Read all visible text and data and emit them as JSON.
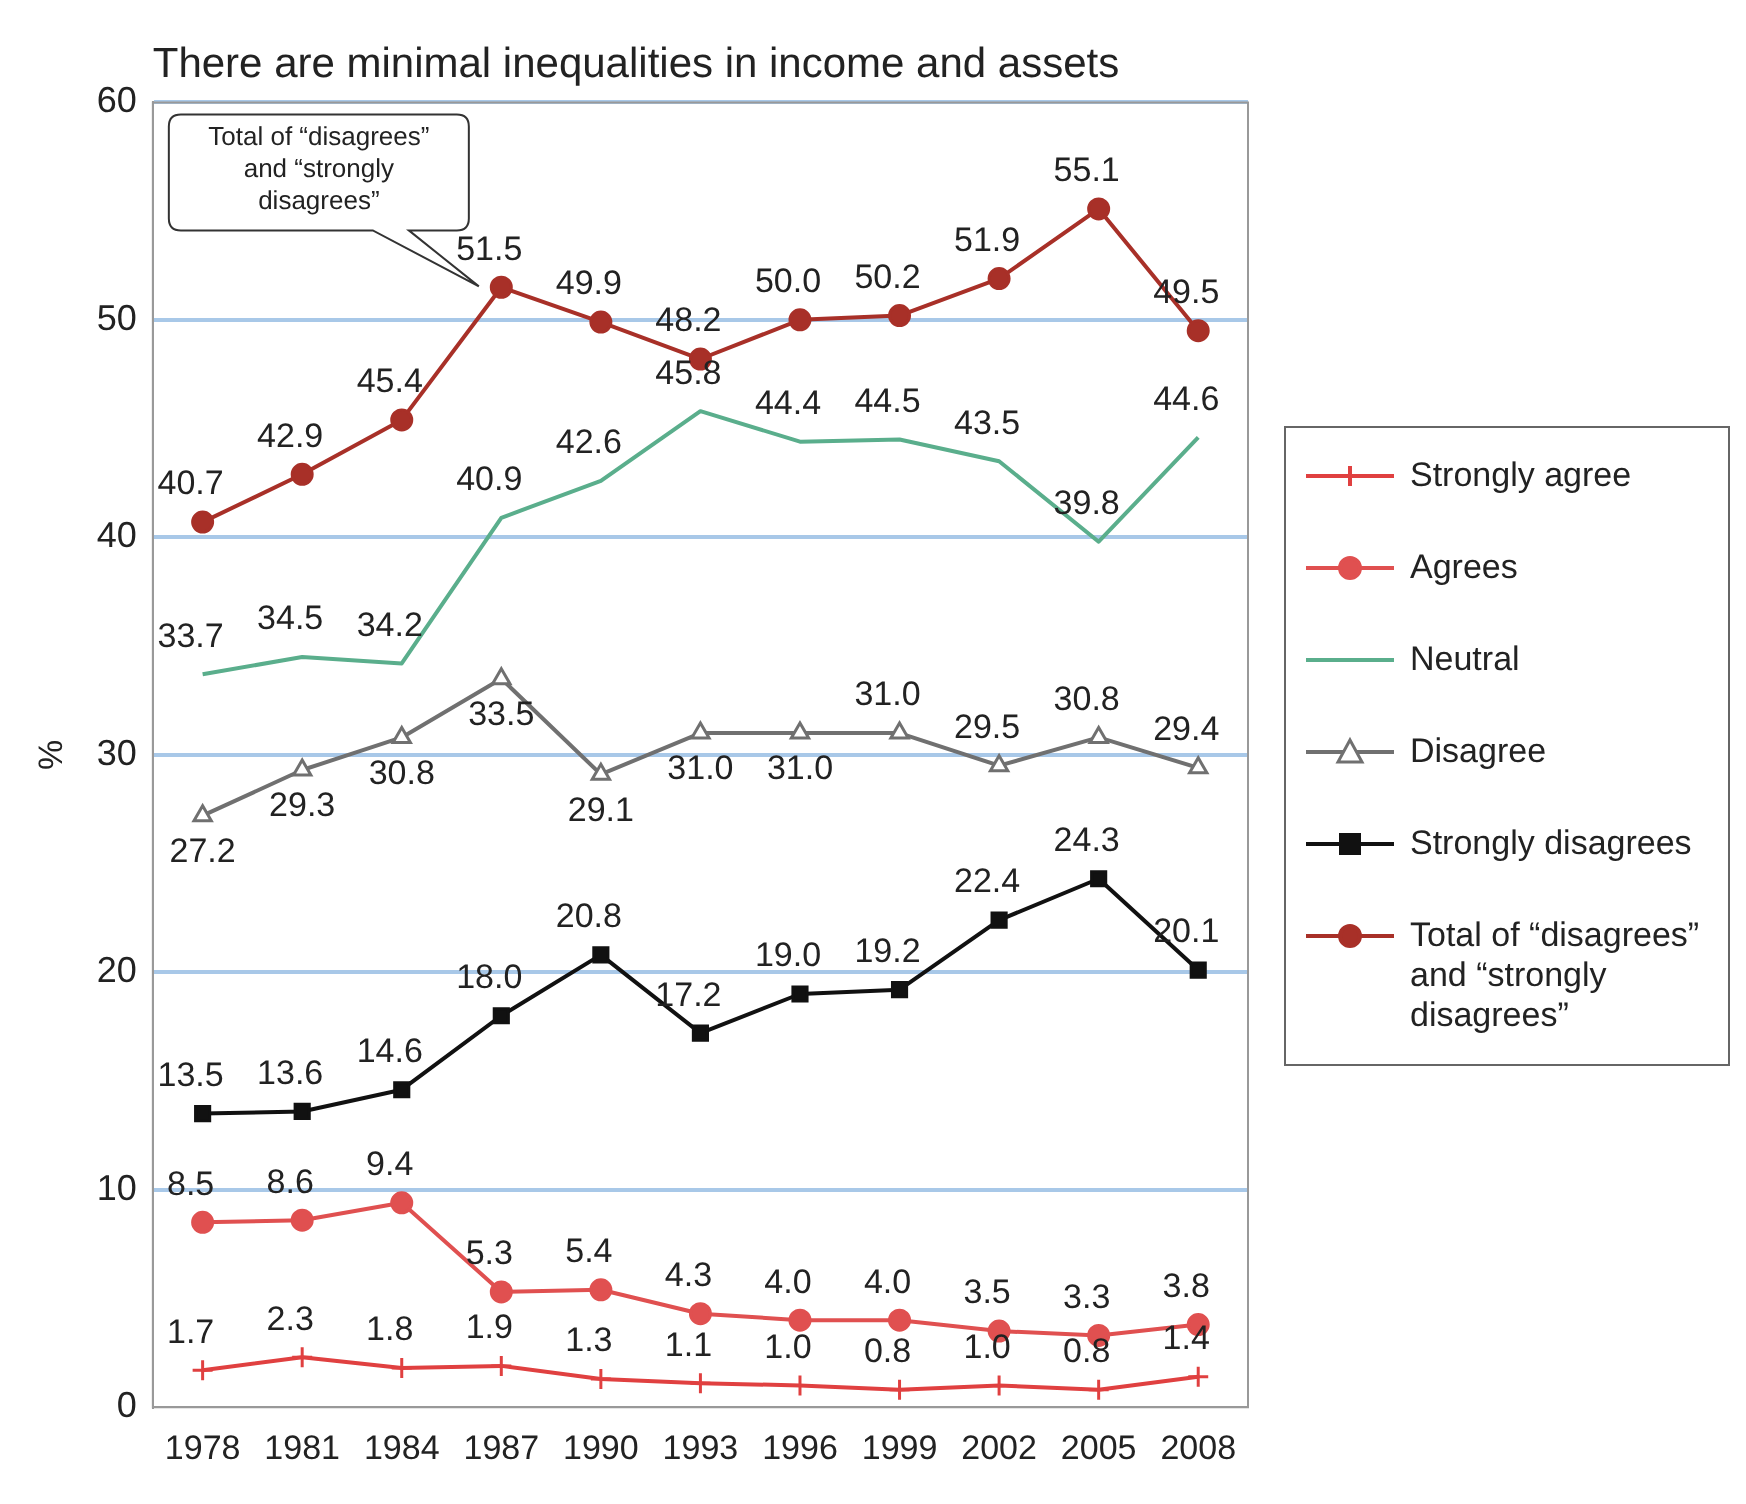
{
  "chart_data": {
    "type": "line",
    "title": "There are minimal inequalities in income and assets",
    "ylabel": "%",
    "categories": [
      "1978",
      "1981",
      "1984",
      "1987",
      "1990",
      "1993",
      "1996",
      "1999",
      "2002",
      "2005",
      "2008"
    ],
    "series": [
      {
        "name": "Strongly agree",
        "color": "#e04040",
        "marker": "cross",
        "values": [
          1.7,
          2.3,
          1.8,
          1.9,
          1.3,
          1.1,
          1.0,
          0.8,
          1.0,
          0.8,
          1.4
        ],
        "value_labels": [
          "1.7",
          "2.3",
          "1.8",
          "1.9",
          "1.3",
          "1.1",
          "1.0",
          "0.8",
          "1.0",
          "0.8",
          "1.4"
        ]
      },
      {
        "name": "Agrees",
        "color": "#e05050",
        "marker": "circle",
        "values": [
          8.5,
          8.6,
          9.4,
          5.3,
          5.4,
          4.3,
          4.0,
          4.0,
          3.5,
          3.3,
          3.8
        ],
        "value_labels": [
          "8.5",
          "8.6",
          "9.4",
          "5.3",
          "5.4",
          "4.3",
          "4.0",
          "4.0",
          "3.5",
          "3.3",
          "3.8"
        ]
      },
      {
        "name": "Neutral",
        "color": "#5aae8c",
        "marker": "none",
        "values": [
          33.7,
          34.5,
          34.2,
          40.9,
          42.6,
          45.8,
          44.4,
          44.5,
          43.5,
          39.8,
          44.6
        ],
        "value_labels": [
          "33.7",
          "34.5",
          "34.2",
          "40.9",
          "42.6",
          "45.8",
          "44.4",
          "44.5",
          "43.5",
          "39.8",
          "44.6"
        ]
      },
      {
        "name": "Disagree",
        "color": "#707070",
        "marker": "triangle",
        "values": [
          27.2,
          29.3,
          30.8,
          33.5,
          29.1,
          31.0,
          31.0,
          31.0,
          29.5,
          30.8,
          29.4
        ],
        "value_labels": [
          "27.2",
          "29.3",
          "30.8",
          "33.5",
          "29.1",
          "31.0",
          "31.0",
          "31.0",
          "29.5",
          "30.8",
          "29.4"
        ]
      },
      {
        "name": "Strongly disagrees",
        "color": "#111111",
        "marker": "square",
        "values": [
          13.5,
          13.6,
          14.6,
          18.0,
          20.8,
          17.2,
          19.0,
          19.2,
          22.4,
          24.3,
          20.1
        ],
        "value_labels": [
          "13.5",
          "13.6",
          "14.6",
          "18.0",
          "20.8",
          "17.2",
          "19.0",
          "19.2",
          "22.4",
          "24.3",
          "20.1"
        ]
      },
      {
        "name": "Total of “disagrees” and “strongly disagrees”",
        "color": "#a83028",
        "marker": "circle",
        "values": [
          40.7,
          42.9,
          45.4,
          51.5,
          49.9,
          48.2,
          50.0,
          50.2,
          51.9,
          55.1,
          49.5
        ],
        "value_labels": [
          "40.7",
          "42.9",
          "45.4",
          "51.5",
          "49.9",
          "48.2",
          "50.0",
          "50.2",
          "51.9",
          "55.1",
          "49.5"
        ]
      }
    ],
    "ylim": [
      0,
      60
    ],
    "yticks": [
      0,
      10,
      20,
      30,
      40,
      50,
      60
    ],
    "grid": "y",
    "legend": "right",
    "line_style": "solid",
    "annotations": [
      "Total of “disagrees” and “strongly disagrees”"
    ]
  }
}
